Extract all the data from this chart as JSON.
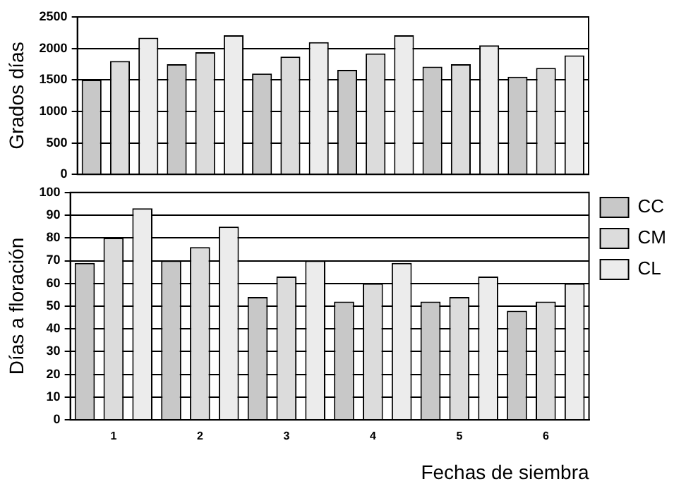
{
  "chart_data": [
    {
      "type": "bar",
      "ylabel": "Grados días",
      "categories": [
        "1",
        "2",
        "3",
        "4",
        "5",
        "6"
      ],
      "tick_labels": "y",
      "grid": "y",
      "legend": false,
      "ylim": [
        0,
        2500
      ],
      "yticks": [
        0,
        500,
        1000,
        1500,
        2000,
        2500
      ],
      "series": [
        {
          "color": "#c8c8c8",
          "values": [
            1500,
            1750,
            1600,
            1660,
            1710,
            1550
          ]
        },
        {
          "color": "#dcdcdc",
          "values": [
            1800,
            1940,
            1870,
            1920,
            1750,
            1690
          ]
        },
        {
          "color": "#ececec",
          "values": [
            2170,
            2210,
            2100,
            2210,
            2050,
            1890
          ]
        }
      ]
    },
    {
      "type": "bar",
      "ylabel": "Días a floración",
      "xlabel": "Fechas de siembra",
      "categories": [
        "1",
        "2",
        "3",
        "4",
        "5",
        "6"
      ],
      "grid": "y",
      "legend": "top right",
      "ylim": [
        0,
        100
      ],
      "yticks": [
        0,
        10,
        20,
        30,
        40,
        50,
        60,
        70,
        80,
        90,
        100
      ],
      "series": [
        {
          "name": "CC",
          "color": "#c8c8c8",
          "values": [
            69,
            70,
            54,
            52,
            52,
            48
          ]
        },
        {
          "name": "CM",
          "color": "#dcdcdc",
          "values": [
            80,
            76,
            63,
            60,
            54,
            52
          ]
        },
        {
          "name": "CL",
          "color": "#ececec",
          "values": [
            93,
            85,
            70,
            69,
            63,
            60
          ]
        }
      ]
    }
  ]
}
